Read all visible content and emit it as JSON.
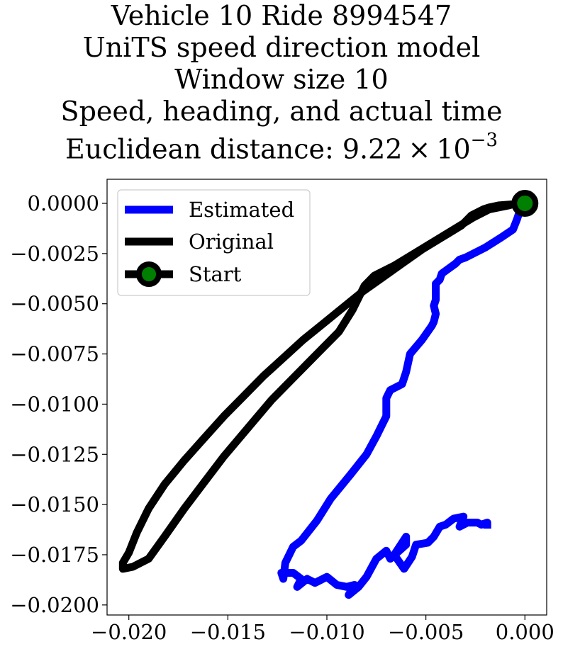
{
  "chart_data": {
    "type": "line",
    "title_lines": [
      "Vehicle 10 Ride 8994547",
      "UniTS speed direction model",
      "Window size 10",
      "Speed, heading, and actual time"
    ],
    "title_distance_prefix": "Euclidean distance: 9.22",
    "title_distance_times": "×",
    "title_distance_base": "10",
    "title_distance_exponent": "−3",
    "xlabel": "",
    "ylabel": "",
    "xlim": [
      -0.0211,
      0.0011
    ],
    "ylim": [
      -0.0205,
      0.0012
    ],
    "xticks": [
      -0.02,
      -0.015,
      -0.01,
      -0.005,
      0.0
    ],
    "xtick_labels": [
      "−0.020",
      "−0.015",
      "−0.010",
      "−0.005",
      "0.000"
    ],
    "yticks": [
      0.0,
      -0.0025,
      -0.005,
      -0.0075,
      -0.01,
      -0.0125,
      -0.015,
      -0.0175,
      -0.02
    ],
    "ytick_labels": [
      "0.0000",
      "−0.0025",
      "−0.0050",
      "−0.0075",
      "−0.0100",
      "−0.0125",
      "−0.0150",
      "−0.0175",
      "−0.0200"
    ],
    "grid": false,
    "legend_position": "top-left",
    "series": [
      {
        "name": "Estimated",
        "color": "#0000ff",
        "points": [
          [
            0.0,
            0.0
          ],
          [
            -0.0003,
            -0.0005
          ],
          [
            -0.0004,
            -0.0008
          ],
          [
            -0.0006,
            -0.0013
          ],
          [
            -0.0012,
            -0.0017
          ],
          [
            -0.002,
            -0.0022
          ],
          [
            -0.003,
            -0.0027
          ],
          [
            -0.0033,
            -0.0028
          ],
          [
            -0.0035,
            -0.003
          ],
          [
            -0.0042,
            -0.0035
          ],
          [
            -0.0043,
            -0.0038
          ],
          [
            -0.0045,
            -0.004
          ],
          [
            -0.0045,
            -0.0048
          ],
          [
            -0.0046,
            -0.0051
          ],
          [
            -0.0045,
            -0.0055
          ],
          [
            -0.0046,
            -0.0059
          ],
          [
            -0.0047,
            -0.0061
          ],
          [
            -0.0052,
            -0.0068
          ],
          [
            -0.0058,
            -0.0075
          ],
          [
            -0.006,
            -0.0084
          ],
          [
            -0.0062,
            -0.009
          ],
          [
            -0.0068,
            -0.0093
          ],
          [
            -0.007,
            -0.0097
          ],
          [
            -0.007,
            -0.0106
          ],
          [
            -0.0075,
            -0.0116
          ],
          [
            -0.008,
            -0.0125
          ],
          [
            -0.0088,
            -0.0135
          ],
          [
            -0.0098,
            -0.0147
          ],
          [
            -0.0105,
            -0.0158
          ],
          [
            -0.0113,
            -0.0168
          ],
          [
            -0.0117,
            -0.0171
          ],
          [
            -0.0121,
            -0.0179
          ],
          [
            -0.0122,
            -0.0187
          ],
          [
            -0.0123,
            -0.0184
          ],
          [
            -0.0117,
            -0.0184
          ],
          [
            -0.0113,
            -0.0187
          ],
          [
            -0.0115,
            -0.0191
          ],
          [
            -0.011,
            -0.0187
          ],
          [
            -0.0106,
            -0.0189
          ],
          [
            -0.01,
            -0.0186
          ],
          [
            -0.0095,
            -0.019
          ],
          [
            -0.009,
            -0.0191
          ],
          [
            -0.0086,
            -0.019
          ],
          [
            -0.0089,
            -0.0195
          ],
          [
            -0.0084,
            -0.0191
          ],
          [
            -0.008,
            -0.0186
          ],
          [
            -0.0075,
            -0.0177
          ],
          [
            -0.007,
            -0.0173
          ],
          [
            -0.0068,
            -0.0177
          ],
          [
            -0.006,
            -0.017
          ],
          [
            -0.006,
            -0.0166
          ],
          [
            -0.0066,
            -0.0175
          ],
          [
            -0.0061,
            -0.0182
          ],
          [
            -0.0057,
            -0.0176
          ],
          [
            -0.0055,
            -0.017
          ],
          [
            -0.0049,
            -0.0169
          ],
          [
            -0.0046,
            -0.0166
          ],
          [
            -0.0043,
            -0.0161
          ],
          [
            -0.004,
            -0.016
          ],
          [
            -0.0036,
            -0.0157
          ],
          [
            -0.0031,
            -0.0156
          ],
          [
            -0.0033,
            -0.0161
          ],
          [
            -0.0029,
            -0.0159
          ],
          [
            -0.0024,
            -0.0159
          ],
          [
            -0.0022,
            -0.016
          ],
          [
            -0.0019,
            -0.0159
          ],
          [
            -0.0019,
            -0.0162
          ]
        ]
      },
      {
        "name": "Original",
        "color": "#000000",
        "points": [
          [
            0.0,
            0.0
          ],
          [
            -0.0013,
            -0.0001
          ],
          [
            -0.0018,
            -0.0002
          ],
          [
            -0.0021,
            -0.0003
          ],
          [
            -0.0027,
            -0.0006
          ],
          [
            -0.0032,
            -0.0011
          ],
          [
            -0.0042,
            -0.0017
          ],
          [
            -0.0052,
            -0.0023
          ],
          [
            -0.0062,
            -0.003
          ],
          [
            -0.0072,
            -0.0037
          ],
          [
            -0.0082,
            -0.0044
          ],
          [
            -0.0092,
            -0.0052
          ],
          [
            -0.0102,
            -0.006
          ],
          [
            -0.0112,
            -0.0068
          ],
          [
            -0.0122,
            -0.0077
          ],
          [
            -0.0132,
            -0.0086
          ],
          [
            -0.0142,
            -0.0096
          ],
          [
            -0.0152,
            -0.0106
          ],
          [
            -0.0162,
            -0.0117
          ],
          [
            -0.0172,
            -0.0128
          ],
          [
            -0.0182,
            -0.014
          ],
          [
            -0.019,
            -0.0152
          ],
          [
            -0.0196,
            -0.0164
          ],
          [
            -0.02,
            -0.0174
          ],
          [
            -0.0203,
            -0.0179
          ],
          [
            -0.0203,
            -0.0182
          ],
          [
            -0.0198,
            -0.0181
          ],
          [
            -0.019,
            -0.0177
          ],
          [
            -0.0182,
            -0.0166
          ],
          [
            -0.0172,
            -0.0152
          ],
          [
            -0.0162,
            -0.0139
          ],
          [
            -0.0152,
            -0.0126
          ],
          [
            -0.014,
            -0.0112
          ],
          [
            -0.0128,
            -0.0098
          ],
          [
            -0.0116,
            -0.0086
          ],
          [
            -0.0104,
            -0.0074
          ],
          [
            -0.0094,
            -0.0064
          ],
          [
            -0.0087,
            -0.0053
          ],
          [
            -0.0084,
            -0.0047
          ],
          [
            -0.0081,
            -0.0041
          ],
          [
            -0.0076,
            -0.0036
          ],
          [
            -0.0066,
            -0.0031
          ],
          [
            -0.0056,
            -0.0025
          ],
          [
            -0.0046,
            -0.0019
          ],
          [
            -0.0036,
            -0.0013
          ],
          [
            -0.0026,
            -0.0007
          ],
          [
            -0.0018,
            -0.0003
          ],
          [
            -0.0008,
            -0.0001
          ],
          [
            0.0003,
            0.0002
          ],
          [
            0.0,
            0.0
          ]
        ]
      },
      {
        "name": "Start",
        "color": "#000000",
        "marker_color": "#008000",
        "points": [
          [
            0.0,
            0.0
          ]
        ]
      }
    ]
  }
}
